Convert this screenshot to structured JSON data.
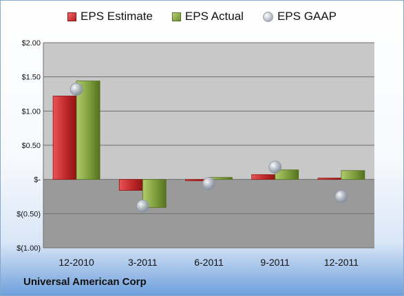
{
  "company": "Universal American Corp",
  "colors": {
    "estimate": "#c0282a",
    "actual": "#7e9e3c",
    "gaap": "#aab2be",
    "plot_bg": "#c8c8c8",
    "neg_bg": "#9a9a9a"
  },
  "chart_data": {
    "type": "bar",
    "categories": [
      "12-2010",
      "3-2011",
      "6-2011",
      "9-2011",
      "12-2011"
    ],
    "series": [
      {
        "name": "EPS Estimate",
        "type": "bar",
        "values": [
          1.22,
          -0.16,
          -0.02,
          0.07,
          0.02
        ]
      },
      {
        "name": "EPS Actual",
        "type": "bar",
        "values": [
          1.44,
          -0.41,
          0.03,
          0.14,
          0.13
        ]
      },
      {
        "name": "EPS GAAP",
        "type": "scatter",
        "values": [
          1.32,
          -0.39,
          -0.06,
          0.18,
          -0.25
        ]
      }
    ],
    "y_ticks": [
      "$2.00",
      "$1.50",
      "$1.00",
      "$0.50",
      "$-",
      "$(0.50)",
      "$(1.00)"
    ],
    "y_tick_values": [
      2.0,
      1.5,
      1.0,
      0.5,
      0.0,
      -0.5,
      -1.0
    ],
    "ylim": [
      -1.0,
      2.0
    ],
    "grid": true,
    "legend_position": "top"
  }
}
